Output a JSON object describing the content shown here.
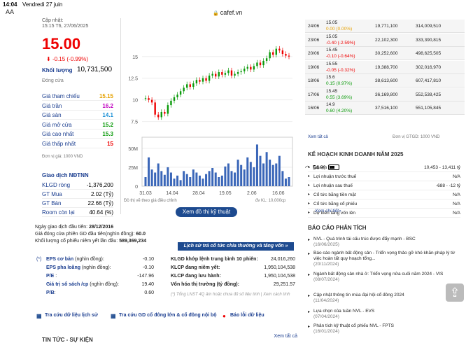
{
  "status": {
    "time": "14:04",
    "date": "Vendredi 27 juin",
    "battery": "54 %"
  },
  "browser": {
    "aa": "AA",
    "url": "cafef.vn"
  },
  "quote": {
    "updated_label": "Cập nhật:",
    "updated_time": "15:15 T6, 27/06/2025",
    "price": "15.00",
    "change": "-0.15 (-0.99%)",
    "volume_label": "Khối lượng",
    "volume": "10,731,500",
    "status": "Đóng cửa",
    "stats": [
      {
        "label": "Giá tham chiếu",
        "value": "15.15",
        "color": "#e6a100"
      },
      {
        "label": "Giá trần",
        "value": "16.2",
        "color": "#c000c0"
      },
      {
        "label": "Giá sàn",
        "value": "14.1",
        "color": "#1a8fd6"
      },
      {
        "label": "Giá mở cửa",
        "value": "15.2",
        "color": "#0a9a0a"
      },
      {
        "label": "Giá cao nhất",
        "value": "15.3",
        "color": "#0a9a0a"
      },
      {
        "label": "Giá thấp nhất",
        "value": "15",
        "color": "#e00"
      }
    ],
    "unit": "Đơn vị giá: 1000 VND",
    "foreign_title": "Giao dịch NĐTNN",
    "foreign": [
      {
        "label": "KLGD ròng",
        "value": "-1,376,200"
      },
      {
        "label": "GT Mua",
        "value": "2.02 (Tỷ)"
      },
      {
        "label": "GT Bán",
        "value": "22.66 (Tỷ)"
      },
      {
        "label": "Room còn lại",
        "value": "40.64 (%)"
      }
    ]
  },
  "chart_data": {
    "type": "line",
    "title": "",
    "x_ticks": [
      "31.03",
      "14.04",
      "28.04",
      "19.05",
      "2.06",
      "16.06"
    ],
    "price_ticks": [
      "15",
      "12.5",
      "10",
      "7.5"
    ],
    "volume_ticks": [
      "50M",
      "25M",
      "0"
    ],
    "price_series": [
      10.2,
      10.0,
      9.7,
      8.3,
      8.0,
      8.6,
      8.4,
      9.4,
      9.9,
      10.3,
      10.6,
      11.0,
      11.4,
      11.8,
      11.5,
      11.9,
      12.3,
      12.1,
      12.5,
      12.2,
      12.8,
      13.0,
      12.7,
      13.2,
      12.9,
      13.1,
      13.4,
      12.8,
      13.0,
      13.2,
      13.3,
      13.6,
      13.8,
      13.5,
      13.9,
      14.3,
      14.0,
      14.5,
      14.8,
      15.5,
      15.2,
      15.9,
      15.7,
      15.3,
      15.1,
      15.0
    ],
    "volume_series": [
      12,
      38,
      22,
      18,
      30,
      20,
      15,
      25,
      18,
      10,
      14,
      8,
      20,
      16,
      12,
      22,
      18,
      14,
      10,
      16,
      20,
      24,
      18,
      12,
      14,
      26,
      30,
      20,
      18,
      35,
      28,
      22,
      38,
      32,
      25,
      55,
      40,
      30,
      45,
      35,
      28,
      30,
      40,
      20,
      10,
      12
    ],
    "note_left": "Đồ thị vẽ theo giá điều chỉnh",
    "note_right": "đv KL: 10,000cp"
  },
  "tech_button": "Xem đồ thị kỹ thuật",
  "info": [
    {
      "label": "Ngày giao dịch đầu tiên: ",
      "value": "28/12/2016"
    },
    {
      "label": "Giá đóng cửa phiên GD đầu tiên(nghìn đồng): ",
      "value": "60.0"
    },
    {
      "label": "Khối lượng cổ phiếu niêm yết lần đầu: ",
      "value": "589,369,234"
    }
  ],
  "history_link": "Lịch sử trả cổ tức chia thưởng và tăng vốn »",
  "eps": [
    {
      "label": "EPS cơ bản",
      "suffix": " (nghìn đồng):",
      "value": "-0.10",
      "star": "(*)"
    },
    {
      "label": "EPS pha loãng",
      "suffix": " (nghìn đồng):",
      "value": "-0.10",
      "star": ""
    },
    {
      "label": "P/E",
      "suffix": " :",
      "value": "-147.96",
      "star": ""
    },
    {
      "label": "Giá trị sổ sách /cp",
      "suffix": " (nghìn đồng):",
      "value": "19.40",
      "star": ""
    },
    {
      "label": "P/B",
      "suffix": ":",
      "value": "0.60",
      "star": ""
    }
  ],
  "kl": [
    {
      "label": "KLGD khớp lệnh trung bình 10 phiên:",
      "value": "24,016,260"
    },
    {
      "label": "KLCP đang niêm yết:",
      "value": "1,950,104,538"
    },
    {
      "label": "KLCP đang lưu hành:",
      "value": "1,950,104,538"
    },
    {
      "label": "Vốn hóa thị trường (tỷ đồng):",
      "value": "29,251.57"
    }
  ],
  "kl_note": "(*) Tổng LNST 4Q âm hoặc chưa đủ số liệu tính | Xem cách tính",
  "links": [
    "Tra cứu dữ liệu lịch sử",
    "Tra cứu GD cổ đông lớn & cổ đông nội bộ",
    "Báo lỗi dữ liệu"
  ],
  "news_title": "TIN TỨC - SỰ KIỆN",
  "news_all": "Xem tất cả",
  "history": [
    {
      "date": "24/06",
      "price": "15.05",
      "change": "0.00 (0.00%)",
      "dir": "flat",
      "vol": "19,771,100",
      "val": "314,009,510"
    },
    {
      "date": "23/06",
      "price": "15.05",
      "change": "-0.40 (-2.59%)",
      "dir": "dn",
      "vol": "22,102,300",
      "val": "333,390,815"
    },
    {
      "date": "20/06",
      "price": "15.45",
      "change": "-0.10 (-0.64%)",
      "dir": "dn",
      "vol": "30,252,600",
      "val": "498,625,505"
    },
    {
      "date": "19/06",
      "price": "15.55",
      "change": "-0.05 (-0.32%)",
      "dir": "dn",
      "vol": "19,388,700",
      "val": "302,016,970"
    },
    {
      "date": "18/06",
      "price": "15.6",
      "change": "0.15 (0.97%)",
      "dir": "up",
      "vol": "38,613,600",
      "val": "607,417,810"
    },
    {
      "date": "17/06",
      "price": "15.45",
      "change": "0.55 (3.69%)",
      "dir": "up",
      "vol": "36,169,800",
      "val": "552,538,425"
    },
    {
      "date": "16/06",
      "price": "14.9",
      "change": "0.60 (4.20%)",
      "dir": "up",
      "vol": "37,516,100",
      "val": "551,105,845"
    }
  ],
  "history_all": "Xem tất cả",
  "history_unit": "Đơn vị GTGD: 1000 VND",
  "plan_title": "KẾ HOẠCH KINH DOANH NĂM 2025",
  "plan": [
    {
      "label": "Doanh thu",
      "value": "10,453 - 13,411 tỷ"
    },
    {
      "label": "Lợi nhuận trước thuế",
      "value": "N/A"
    },
    {
      "label": "Lợi nhuận sau thuế",
      "value": "-688 - -12 tỷ"
    },
    {
      "label": "Cổ tức bằng tiền mặt",
      "value": "N/A"
    },
    {
      "label": "Cổ tức bằng cổ phiếu",
      "value": "N/A"
    },
    {
      "label": "Dự kiến tăng vốn lên",
      "value": "N/A"
    }
  ],
  "plan_more": "Xem chi tiết»",
  "analysis_title": "BÁO CÁO PHÂN TÍCH",
  "analysis": [
    {
      "title": "NVL - Quá trình tái cấu trúc được đẩy mạnh - BSC",
      "date": "(16/06/2025)"
    },
    {
      "title": "Báo cáo ngành bất động sản - Triển vọng thảo gỡ khó khăn pháp lý từ việc hoàn tất quy hoạch tổng...",
      "date": "(20/11/2024)"
    },
    {
      "title": "Ngành bất động sản nhà ở: Triển vọng nửa cuối năm 2024 - VIS",
      "date": "(08/07/2024)"
    },
    {
      "title": "Cập nhật thông tin mùa đại hội cổ đông 2024",
      "date": "(11/04/2024)"
    },
    {
      "title": "Lựa chọn của tuần NVL - EVS",
      "date": "(07/04/2024)"
    },
    {
      "title": "Phân tích kỹ thuật cổ phiếu NVL - FPTS",
      "date": "(16/01/2024)"
    }
  ]
}
